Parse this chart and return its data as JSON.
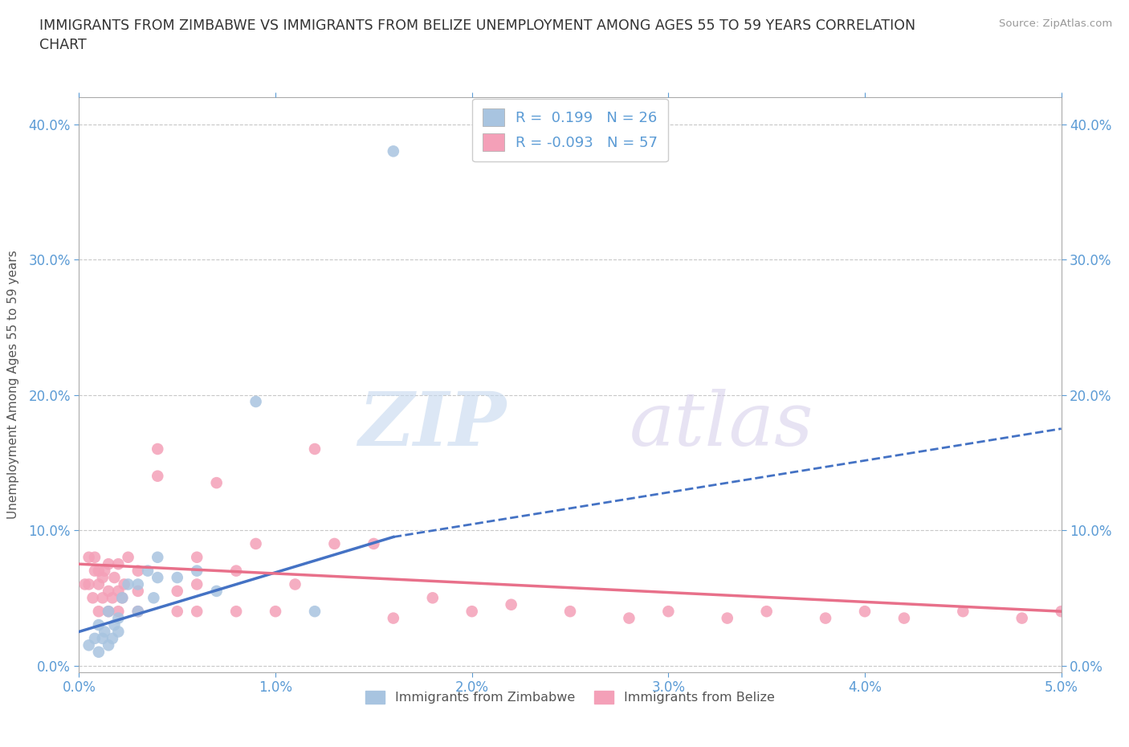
{
  "title": "IMMIGRANTS FROM ZIMBABWE VS IMMIGRANTS FROM BELIZE UNEMPLOYMENT AMONG AGES 55 TO 59 YEARS CORRELATION\nCHART",
  "ylabel": "Unemployment Among Ages 55 to 59 years",
  "source": "Source: ZipAtlas.com",
  "watermark_zip": "ZIP",
  "watermark_atlas": "atlas",
  "xlim": [
    0.0,
    0.05
  ],
  "ylim": [
    -0.005,
    0.42
  ],
  "xticks": [
    0.0,
    0.01,
    0.02,
    0.03,
    0.04,
    0.05
  ],
  "yticks": [
    0.0,
    0.1,
    0.2,
    0.3,
    0.4
  ],
  "xtick_labels": [
    "0.0%",
    "1.0%",
    "2.0%",
    "3.0%",
    "4.0%",
    "5.0%"
  ],
  "ytick_labels": [
    "0.0%",
    "10.0%",
    "20.0%",
    "30.0%",
    "40.0%"
  ],
  "legend_R_zimbabwe": "0.199",
  "legend_N_zimbabwe": "26",
  "legend_R_belize": "-0.093",
  "legend_N_belize": "57",
  "color_zimbabwe": "#a8c4e0",
  "color_belize": "#f4a0b8",
  "color_zimbabwe_line": "#4472c4",
  "color_belize_line": "#e8708a",
  "background_color": "#ffffff",
  "grid_color": "#c8c8c8",
  "zimbabwe_x": [
    0.0005,
    0.0008,
    0.001,
    0.001,
    0.0012,
    0.0013,
    0.0015,
    0.0015,
    0.0017,
    0.0018,
    0.002,
    0.002,
    0.0022,
    0.0025,
    0.003,
    0.003,
    0.0035,
    0.0038,
    0.004,
    0.004,
    0.005,
    0.006,
    0.007,
    0.009,
    0.012,
    0.016
  ],
  "zimbabwe_y": [
    0.015,
    0.02,
    0.01,
    0.03,
    0.02,
    0.025,
    0.015,
    0.04,
    0.02,
    0.03,
    0.025,
    0.035,
    0.05,
    0.06,
    0.04,
    0.06,
    0.07,
    0.05,
    0.065,
    0.08,
    0.065,
    0.07,
    0.055,
    0.195,
    0.04,
    0.38
  ],
  "belize_x": [
    0.0003,
    0.0005,
    0.0005,
    0.0007,
    0.0008,
    0.0008,
    0.001,
    0.001,
    0.001,
    0.0012,
    0.0012,
    0.0013,
    0.0015,
    0.0015,
    0.0015,
    0.0017,
    0.0018,
    0.002,
    0.002,
    0.002,
    0.0022,
    0.0023,
    0.0025,
    0.003,
    0.003,
    0.003,
    0.004,
    0.004,
    0.005,
    0.005,
    0.006,
    0.006,
    0.006,
    0.007,
    0.008,
    0.008,
    0.009,
    0.01,
    0.011,
    0.012,
    0.013,
    0.015,
    0.016,
    0.018,
    0.02,
    0.022,
    0.025,
    0.028,
    0.03,
    0.033,
    0.035,
    0.038,
    0.04,
    0.042,
    0.045,
    0.048,
    0.05
  ],
  "belize_y": [
    0.06,
    0.06,
    0.08,
    0.05,
    0.07,
    0.08,
    0.04,
    0.06,
    0.07,
    0.05,
    0.065,
    0.07,
    0.04,
    0.055,
    0.075,
    0.05,
    0.065,
    0.04,
    0.055,
    0.075,
    0.05,
    0.06,
    0.08,
    0.04,
    0.055,
    0.07,
    0.16,
    0.14,
    0.04,
    0.055,
    0.04,
    0.06,
    0.08,
    0.135,
    0.04,
    0.07,
    0.09,
    0.04,
    0.06,
    0.16,
    0.09,
    0.09,
    0.035,
    0.05,
    0.04,
    0.045,
    0.04,
    0.035,
    0.04,
    0.035,
    0.04,
    0.035,
    0.04,
    0.035,
    0.04,
    0.035,
    0.04
  ],
  "trend_zim_x0": 0.0,
  "trend_zim_y0": 0.025,
  "trend_zim_x1_solid": 0.016,
  "trend_zim_y1_solid": 0.095,
  "trend_zim_x1_dash": 0.05,
  "trend_zim_y1_dash": 0.175,
  "trend_bel_x0": 0.0,
  "trend_bel_y0": 0.075,
  "trend_bel_x1": 0.05,
  "trend_bel_y1": 0.04
}
